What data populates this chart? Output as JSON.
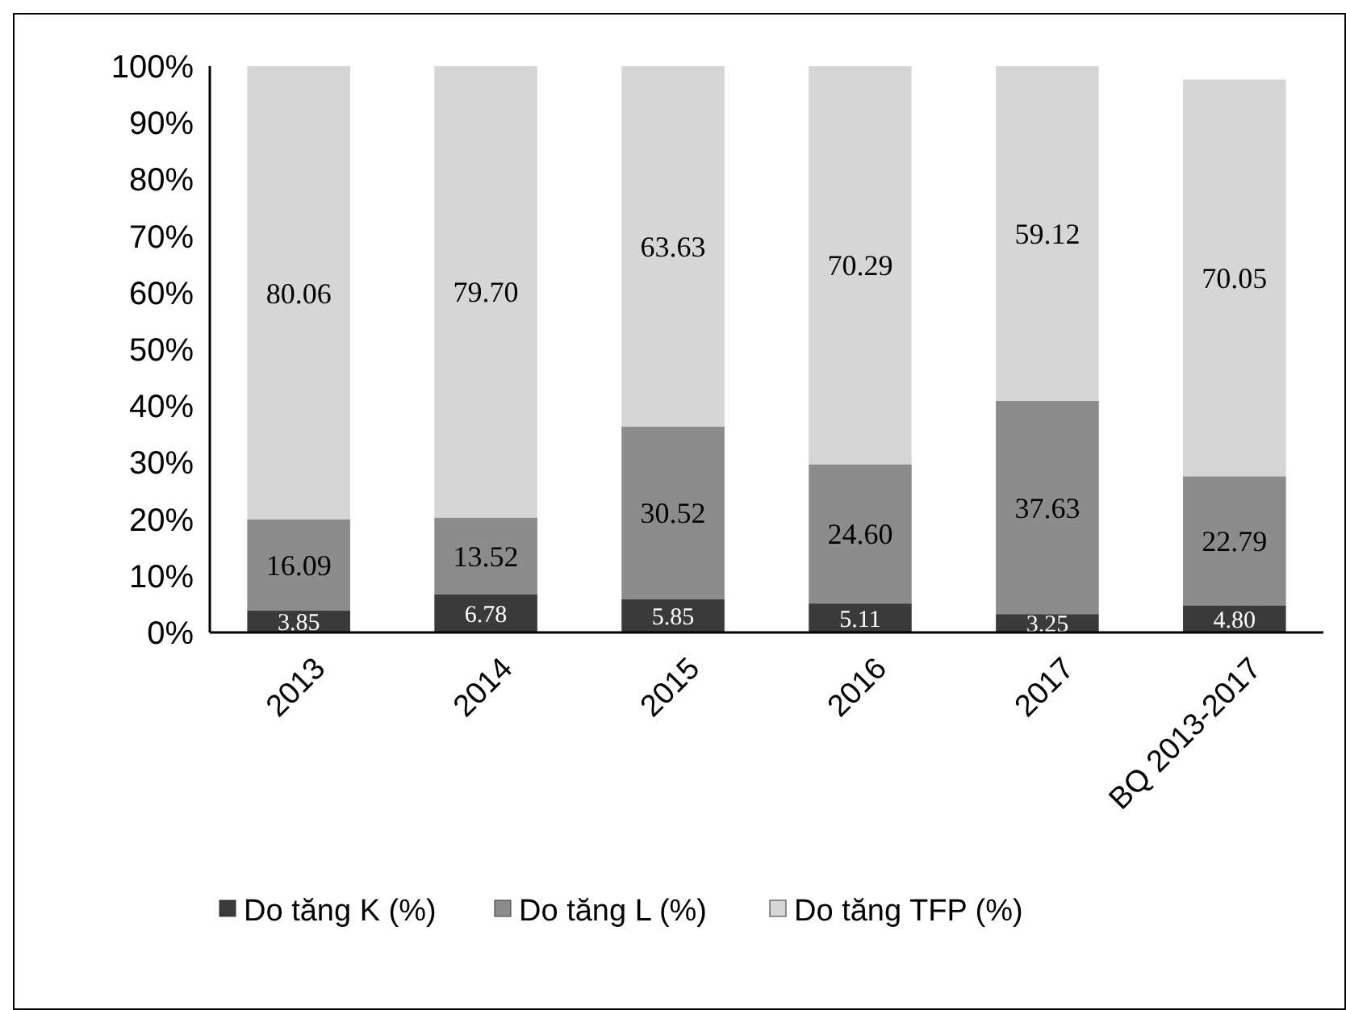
{
  "chart_data": {
    "type": "bar",
    "stacked": true,
    "categories": [
      "2013",
      "2014",
      "2015",
      "2016",
      "2017",
      "BQ 2013-2017"
    ],
    "series": [
      {
        "name": "Do tăng K (%)",
        "color": "#3a3a3a",
        "values": [
          3.85,
          6.78,
          5.85,
          5.11,
          3.25,
          4.8
        ],
        "value_labels": [
          "3.85",
          "6.78",
          "5.85",
          "5.11",
          "3.25",
          "4.80"
        ]
      },
      {
        "name": "Do tăng L (%)",
        "color": "#8c8c8c",
        "values": [
          16.09,
          13.52,
          30.52,
          24.6,
          37.63,
          22.79
        ],
        "value_labels": [
          "16.09",
          "13.52",
          "30.52",
          "24.60",
          "37.63",
          "22.79"
        ]
      },
      {
        "name": "Do tăng TFP (%)",
        "color": "#d6d6d6",
        "values": [
          80.06,
          79.7,
          63.63,
          70.29,
          59.12,
          70.05
        ],
        "value_labels": [
          "80.06",
          "79.70",
          "63.63",
          "70.29",
          "59.12",
          "70.05"
        ]
      }
    ],
    "ylim": [
      0,
      100
    ],
    "yticks": [
      {
        "value": 0,
        "label": "0%"
      },
      {
        "value": 10,
        "label": "10%"
      },
      {
        "value": 20,
        "label": "20%"
      },
      {
        "value": 30,
        "label": "30%"
      },
      {
        "value": 40,
        "label": "40%"
      },
      {
        "value": 50,
        "label": "50%"
      },
      {
        "value": 60,
        "label": "60%"
      },
      {
        "value": 70,
        "label": "70%"
      },
      {
        "value": 80,
        "label": "80%"
      },
      {
        "value": 90,
        "label": "90%"
      },
      {
        "value": 100,
        "label": "100%"
      }
    ],
    "grid": false,
    "legend": "bottom"
  }
}
